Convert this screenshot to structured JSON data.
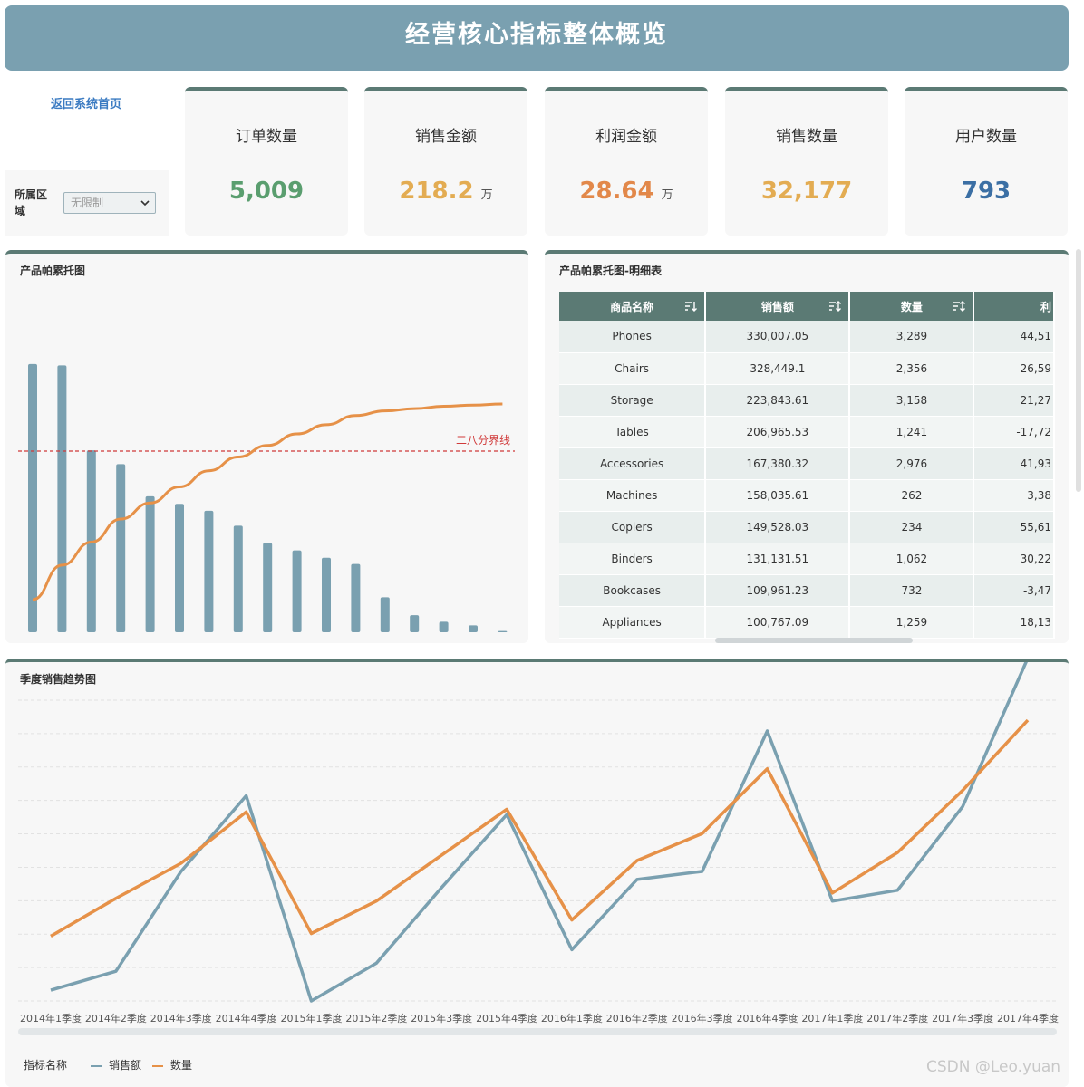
{
  "header": {
    "title": "经营核心指标整体概览"
  },
  "nav": {
    "home_link": "返回系统首页"
  },
  "filter": {
    "label": "所属区域",
    "value": "无限制"
  },
  "kpis": [
    {
      "label": "订单数量",
      "value": "5,009",
      "unit": "",
      "color": "#5a9e6f"
    },
    {
      "label": "销售金额",
      "value": "218.2",
      "unit": "万",
      "color": "#e3ac52"
    },
    {
      "label": "利润金额",
      "value": "28.64",
      "unit": "万",
      "color": "#e2884a"
    },
    {
      "label": "销售数量",
      "value": "32,177",
      "unit": "",
      "color": "#e3ac52"
    },
    {
      "label": "用户数量",
      "value": "793",
      "unit": "",
      "color": "#3b6fa4"
    }
  ],
  "pareto": {
    "title": "产品帕累托图",
    "threshold_label": "二八分界线",
    "chart_data": {
      "type": "bar",
      "bar_color": "#7aa0b0",
      "line_color": "#e69148",
      "threshold_color": "#d03a3a",
      "values": [
        330007.05,
        328449.1,
        223843.61,
        206965.53,
        167380.32,
        158035.61,
        149528.03,
        131131.51,
        109961.23,
        100767.09,
        91700,
        84000,
        43000,
        21000,
        13000,
        8500,
        1500
      ],
      "cumulative_share": [
        0.15,
        0.3,
        0.4,
        0.5,
        0.57,
        0.64,
        0.71,
        0.77,
        0.82,
        0.87,
        0.91,
        0.95,
        0.97,
        0.98,
        0.99,
        0.995,
        1.0
      ],
      "threshold": 0.8,
      "ylim": [
        0,
        350000
      ]
    }
  },
  "detail": {
    "title": "产品帕累托图-明细表",
    "columns": [
      "商品名称",
      "销售额",
      "数量",
      "利"
    ],
    "rows": [
      [
        "Phones",
        "330,007.05",
        "3,289",
        "44,51"
      ],
      [
        "Chairs",
        "328,449.1",
        "2,356",
        "26,59"
      ],
      [
        "Storage",
        "223,843.61",
        "3,158",
        "21,27"
      ],
      [
        "Tables",
        "206,965.53",
        "1,241",
        "-17,72"
      ],
      [
        "Accessories",
        "167,380.32",
        "2,976",
        "41,93"
      ],
      [
        "Machines",
        "158,035.61",
        "262",
        "3,38"
      ],
      [
        "Copiers",
        "149,528.03",
        "234",
        "55,61"
      ],
      [
        "Binders",
        "131,131.51",
        "1,062",
        "30,22"
      ],
      [
        "Bookcases",
        "109,961.23",
        "732",
        "-3,47"
      ],
      [
        "Appliances",
        "100,767.09",
        "1,259",
        "18,13"
      ]
    ]
  },
  "trend": {
    "title": "季度销售趋势图",
    "legend_title": "指标名称",
    "chart_data": {
      "type": "line",
      "categories": [
        "2014年1季度",
        "2014年2季度",
        "2014年3季度",
        "2014年4季度",
        "2015年1季度",
        "2015年2季度",
        "2015年3季度",
        "2015年4季度",
        "2016年1季度",
        "2016年2季度",
        "2016年3季度",
        "2016年4季度",
        "2017年1季度",
        "2017年2季度",
        "2017年3季度",
        "2017年4季度"
      ],
      "series": [
        {
          "name": "销售额",
          "color": "#7aa0b0",
          "values": [
            0.04,
            0.11,
            0.48,
            0.76,
            0.0,
            0.14,
            0.42,
            0.69,
            0.19,
            0.45,
            0.48,
            1.0,
            0.37,
            0.41,
            0.72,
            1.27
          ]
        },
        {
          "name": "数量",
          "color": "#e69148",
          "values": [
            0.24,
            0.38,
            0.51,
            0.7,
            0.25,
            0.37,
            0.54,
            0.71,
            0.3,
            0.52,
            0.62,
            0.86,
            0.4,
            0.55,
            0.78,
            1.04
          ]
        }
      ],
      "grid": true,
      "legend": "bottom-left"
    }
  },
  "watermark": "CSDN @Leo.yuan"
}
